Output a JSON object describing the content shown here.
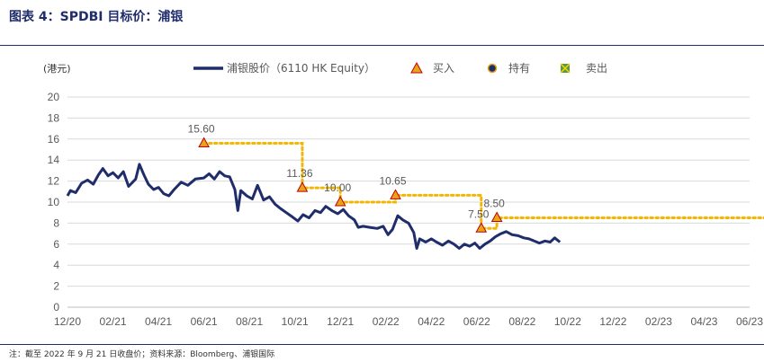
{
  "figure_title": "图表 4：SPDBI 目标价：浦银",
  "unit_label": "(港元)",
  "footnote": "注：截至 2022 年 9 月 21 日收盘价；资料来源：Bloomberg、浦银国际",
  "legend": {
    "price": "浦银股价（6110 HK Equity）",
    "buy": "买入",
    "hold": "持有",
    "sell": "卖出"
  },
  "colors": {
    "price": "#1f2d6b",
    "target": "#f2b705",
    "buy_marker": "#e8a317",
    "buy_marker_edge": "#c00000",
    "grid": "#d9d9d9"
  },
  "chart_data": {
    "type": "line",
    "title": "图表 4：SPDBI 目标价：浦银",
    "ylabel": "(港元)",
    "ylim": [
      0,
      20
    ],
    "yticks": [
      0,
      2,
      4,
      6,
      8,
      10,
      12,
      14,
      16,
      18,
      20
    ],
    "xlim": [
      "2020-12",
      "2023-06"
    ],
    "xtick_labels": [
      "12/20",
      "02/21",
      "04/21",
      "06/21",
      "08/21",
      "10/21",
      "12/21",
      "02/22",
      "04/22",
      "06/22",
      "08/22",
      "10/22",
      "12/22",
      "02/23",
      "04/23",
      "06/23"
    ],
    "grid": "horizontal",
    "legend_position": "top",
    "series": [
      {
        "name": "浦银股价（6110 HK Equity）",
        "points": [
          [
            "2020-12-01",
            10.6
          ],
          [
            "2020-12-05",
            11.1
          ],
          [
            "2020-12-12",
            10.9
          ],
          [
            "2020-12-20",
            11.8
          ],
          [
            "2020-12-28",
            12.1
          ],
          [
            "2021-01-05",
            11.7
          ],
          [
            "2021-01-12",
            12.6
          ],
          [
            "2021-01-18",
            13.2
          ],
          [
            "2021-01-25",
            12.5
          ],
          [
            "2021-02-01",
            12.8
          ],
          [
            "2021-02-08",
            12.3
          ],
          [
            "2021-02-15",
            12.9
          ],
          [
            "2021-02-22",
            11.5
          ],
          [
            "2021-03-01",
            12.2
          ],
          [
            "2021-03-06",
            13.6
          ],
          [
            "2021-03-12",
            12.6
          ],
          [
            "2021-03-18",
            11.7
          ],
          [
            "2021-03-25",
            11.2
          ],
          [
            "2021-04-01",
            11.4
          ],
          [
            "2021-04-08",
            10.8
          ],
          [
            "2021-04-15",
            10.6
          ],
          [
            "2021-04-22",
            11.2
          ],
          [
            "2021-05-01",
            11.9
          ],
          [
            "2021-05-10",
            11.6
          ],
          [
            "2021-05-20",
            12.2
          ],
          [
            "2021-06-01",
            12.3
          ],
          [
            "2021-06-08",
            12.7
          ],
          [
            "2021-06-15",
            12.2
          ],
          [
            "2021-06-22",
            12.9
          ],
          [
            "2021-06-29",
            12.5
          ],
          [
            "2021-07-05",
            12.4
          ],
          [
            "2021-07-12",
            11.2
          ],
          [
            "2021-07-16",
            9.2
          ],
          [
            "2021-07-20",
            11.1
          ],
          [
            "2021-07-28",
            10.6
          ],
          [
            "2021-08-05",
            10.3
          ],
          [
            "2021-08-12",
            11.6
          ],
          [
            "2021-08-20",
            10.2
          ],
          [
            "2021-08-28",
            10.5
          ],
          [
            "2021-09-05",
            9.8
          ],
          [
            "2021-09-12",
            9.4
          ],
          [
            "2021-09-20",
            9.0
          ],
          [
            "2021-09-28",
            8.6
          ],
          [
            "2021-10-05",
            8.2
          ],
          [
            "2021-10-12",
            8.8
          ],
          [
            "2021-10-20",
            8.5
          ],
          [
            "2021-10-28",
            9.2
          ],
          [
            "2021-11-05",
            9.0
          ],
          [
            "2021-11-12",
            9.6
          ],
          [
            "2021-11-20",
            9.2
          ],
          [
            "2021-11-28",
            8.9
          ],
          [
            "2021-12-05",
            9.3
          ],
          [
            "2021-12-12",
            8.7
          ],
          [
            "2021-12-20",
            8.3
          ],
          [
            "2021-12-25",
            7.6
          ],
          [
            "2022-01-01",
            7.7
          ],
          [
            "2022-01-10",
            7.6
          ],
          [
            "2022-01-20",
            7.5
          ],
          [
            "2022-01-28",
            7.7
          ],
          [
            "2022-02-04",
            6.9
          ],
          [
            "2022-02-10",
            7.4
          ],
          [
            "2022-02-17",
            8.7
          ],
          [
            "2022-02-24",
            8.3
          ],
          [
            "2022-03-01",
            8.0
          ],
          [
            "2022-03-08",
            7.1
          ],
          [
            "2022-03-12",
            5.6
          ],
          [
            "2022-03-16",
            6.5
          ],
          [
            "2022-03-24",
            6.2
          ],
          [
            "2022-04-01",
            6.5
          ],
          [
            "2022-04-08",
            6.2
          ],
          [
            "2022-04-16",
            5.9
          ],
          [
            "2022-04-24",
            6.3
          ],
          [
            "2022-05-01",
            6.0
          ],
          [
            "2022-05-08",
            5.6
          ],
          [
            "2022-05-15",
            6.0
          ],
          [
            "2022-05-22",
            5.8
          ],
          [
            "2022-05-29",
            6.1
          ],
          [
            "2022-06-05",
            5.6
          ],
          [
            "2022-06-12",
            6.0
          ],
          [
            "2022-06-19",
            6.3
          ],
          [
            "2022-06-26",
            6.7
          ],
          [
            "2022-07-03",
            7.0
          ],
          [
            "2022-07-10",
            7.2
          ],
          [
            "2022-07-18",
            6.9
          ],
          [
            "2022-07-26",
            6.8
          ],
          [
            "2022-08-03",
            6.6
          ],
          [
            "2022-08-10",
            6.5
          ],
          [
            "2022-08-17",
            6.3
          ],
          [
            "2022-08-24",
            6.1
          ],
          [
            "2022-09-01",
            6.3
          ],
          [
            "2022-09-08",
            6.2
          ],
          [
            "2022-09-14",
            6.6
          ],
          [
            "2022-09-21",
            6.2
          ]
        ]
      }
    ],
    "target_prices": [
      {
        "date": "2021-06-01",
        "price": 15.6,
        "label": "15.60",
        "rating": "买入"
      },
      {
        "date": "2021-10-11",
        "price": 11.36,
        "label": "11.36",
        "rating": "买入"
      },
      {
        "date": "2021-12-01",
        "price": 10.0,
        "label": "10.00",
        "rating": "买入"
      },
      {
        "date": "2022-02-14",
        "price": 10.65,
        "label": "10.65",
        "rating": "买入"
      },
      {
        "date": "2022-06-07",
        "price": 7.5,
        "label": "7.50",
        "rating": "买入"
      },
      {
        "date": "2022-06-28",
        "price": 8.5,
        "label": "8.50",
        "rating": "买入"
      }
    ],
    "target_line_end": "2023-07-01"
  }
}
